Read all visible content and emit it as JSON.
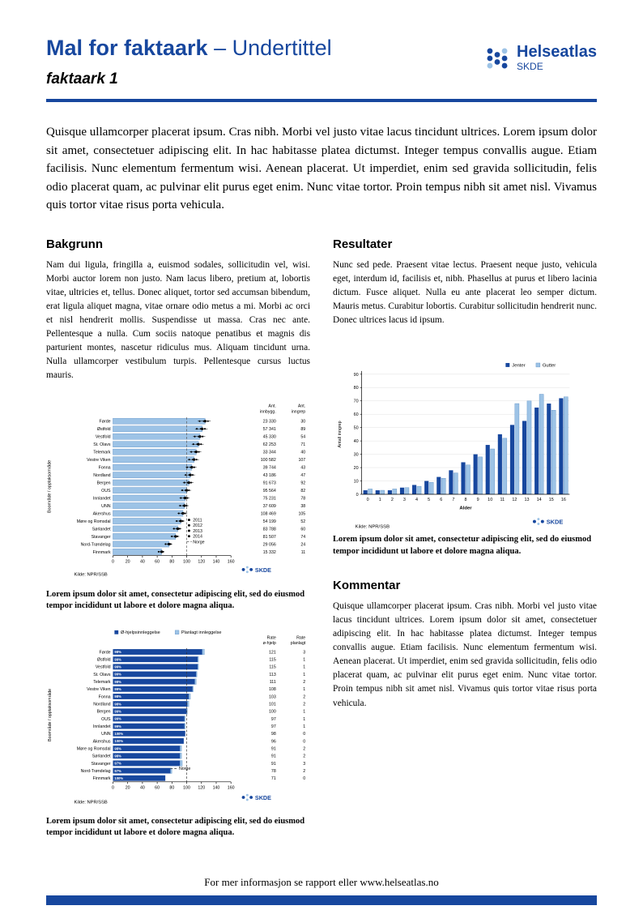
{
  "header": {
    "title": "Mal for faktaark",
    "subtitle": " – Undertittel",
    "sheet_label": "faktaark 1",
    "logo": {
      "name": "Helseatlas",
      "sub": "SKDE"
    }
  },
  "logos": {
    "skde": "SKDE"
  },
  "intro": "Quisque ullamcorper placerat ipsum. Cras nibh. Morbi vel justo vitae lacus tincidunt ultrices. Lorem ipsum dolor sit amet, consectetuer adipiscing elit. In hac habitasse platea dictumst. Integer tempus convallis augue. Etiam facilisis. Nunc elementum fermentum wisi. Aenean placerat. Ut imperdiet, enim sed gravida sollicitudin, felis odio placerat quam, ac pulvinar elit purus eget enim. Nunc vitae tortor. Proin tempus nibh sit amet nisl. Vivamus quis tortor vitae risus porta vehicula.",
  "sections": {
    "bakgrunn": {
      "heading": "Bakgrunn",
      "body": "Nam dui ligula, fringilla a, euismod sodales, sollicitudin vel, wisi. Morbi auctor lorem non justo. Nam lacus libero, pretium at, lobortis vitae, ultricies et, tellus. Donec aliquet, tortor sed accumsan bibendum, erat ligula aliquet magna, vitae ornare odio metus a mi. Morbi ac orci et nisl hendrerit mollis. Suspendisse ut massa. Cras nec ante. Pellentesque a nulla. Cum sociis natoque penatibus et magnis dis parturient montes, nascetur ridiculus mus. Aliquam tincidunt urna. Nulla ullamcorper vestibulum turpis. Pellentesque cursus luctus mauris."
    },
    "resultater": {
      "heading": "Resultater",
      "body": "Nunc sed pede. Praesent vitae lectus. Praesent neque justo, vehicula eget, interdum id, facilisis et, nibh. Phasellus at purus et libero lacinia dictum. Fusce aliquet. Nulla eu ante placerat leo semper dictum. Mauris metus. Curabitur lobortis. Curabitur sollicitudin hendrerit nunc. Donec ultrices lacus id ipsum."
    },
    "kommentar": {
      "heading": "Kommentar",
      "body": "Quisque ullamcorper placerat ipsum. Cras nibh. Morbi vel justo vitae lacus tincidunt ultrices. Lorem ipsum dolor sit amet, consectetuer adipiscing elit. In hac habitasse platea dictumst. Integer tempus convallis augue. Etiam facilisis. Nunc elementum fermentum wisi. Aenean placerat. Ut imperdiet, enim sed gravida sollicitudin, felis odio placerat quam, ac pulvinar elit purus eget enim. Nunc vitae tortor. Proin tempus nibh sit amet nisl. Vivamus quis tortor vitae risus porta vehicula."
    }
  },
  "captions": {
    "chart1": "Lorem ipsum dolor sit amet, consectetur adipiscing elit, sed do eiusmod tempor incididunt ut labore et dolore magna aliqua.",
    "chart2": "Lorem ipsum dolor sit amet, consectetur adipiscing elit, sed do eiusmod tempor incididunt ut labore et dolore magna aliqua.",
    "chart3": "Lorem ipsum dolor sit amet, consectetur adipiscing elit, sed do eiusmod tempor incididunt ut labore et dolore magna aliqua."
  },
  "footer": {
    "text": "For mer informasjon se rapport eller www.helseatlas.no"
  },
  "colors": {
    "brand": "#17479e",
    "bar_light": "#9dc3e6",
    "bar_light_edge": "#5b8ec4",
    "grid": "#e0e0e0"
  },
  "chart_data": [
    {
      "id": "chart1",
      "type": "bar",
      "orientation": "horizontal",
      "ylabel": "Boområde / opptaksområde",
      "categories": [
        "Førde",
        "Østfold",
        "Vestfold",
        "St. Olavs",
        "Telemark",
        "Vestre Viken",
        "Fonna",
        "Nordland",
        "Bergen",
        "OUS",
        "Innlandet",
        "UNN",
        "Akershus",
        "Møre og Romsdal",
        "Sørlandet",
        "Stavanger",
        "Nord-Trøndelag",
        "Finnmark"
      ],
      "values": [
        125,
        121,
        118,
        116,
        113,
        110,
        107,
        105,
        103,
        100,
        98,
        97,
        95,
        92,
        88,
        85,
        76,
        66
      ],
      "col_headers": [
        "Ant. innbygg.",
        "Ant. inngrep"
      ],
      "table": [
        [
          "23 330",
          "30"
        ],
        [
          "57 341",
          "89"
        ],
        [
          "45 330",
          "54"
        ],
        [
          "62 253",
          "71"
        ],
        [
          "33 344",
          "40"
        ],
        [
          "100 582",
          "107"
        ],
        [
          "39 744",
          "43"
        ],
        [
          "43 186",
          "47"
        ],
        [
          "91 673",
          "92"
        ],
        [
          "95 564",
          "82"
        ],
        [
          "75 231",
          "78"
        ],
        [
          "37 609",
          "38"
        ],
        [
          "108 469",
          "105"
        ],
        [
          "54 199",
          "52"
        ],
        [
          "83 788",
          "60"
        ],
        [
          "81 507",
          "74"
        ],
        [
          "29 056",
          "24"
        ],
        [
          "15 332",
          "11"
        ]
      ],
      "legend_years": [
        "2011",
        "2012",
        "2013",
        "2014"
      ],
      "legend_ref": "Norge",
      "xticks": [
        0,
        20,
        40,
        60,
        80,
        100,
        120,
        140,
        160
      ],
      "xlim": [
        0,
        160
      ],
      "reference_line": 100,
      "source": "Kilde: NPR/SSB"
    },
    {
      "id": "chart2",
      "type": "bar",
      "orientation": "horizontal",
      "stacked": true,
      "legend": [
        "Ø-hjelpsinnleggelse",
        "Planlagt innleggelse"
      ],
      "ylabel": "Boområde / opptaksområde",
      "categories": [
        "Førde",
        "Østfold",
        "Vestfold",
        "St. Olavs",
        "Telemark",
        "Vestre Viken",
        "Fonna",
        "Nordland",
        "Bergen",
        "OUS",
        "Innlandet",
        "UNN",
        "Akershus",
        "Møre og Romsdal",
        "Sørlandet",
        "Stavanger",
        "Nord-Trøndelag",
        "Finnmark"
      ],
      "series": [
        {
          "name": "Ø-hjelpsinnleggelse",
          "values": [
            121,
            115,
            115,
            113,
            111,
            108,
            103,
            101,
            100,
            97,
            97,
            98,
            96,
            91,
            91,
            91,
            78,
            71
          ]
        },
        {
          "name": "Planlagt innleggelse",
          "values": [
            3,
            1,
            1,
            1,
            2,
            1,
            2,
            2,
            1,
            1,
            1,
            0,
            0,
            2,
            2,
            3,
            2,
            0
          ]
        }
      ],
      "pct_labels": [
        "98%",
        "99%",
        "99%",
        "99%",
        "98%",
        "99%",
        "98%",
        "98%",
        "99%",
        "99%",
        "99%",
        "100%",
        "100%",
        "98%",
        "98%",
        "97%",
        "97%",
        "100%"
      ],
      "col_headers": [
        "Rate ø-hjelp",
        "Rate planlagt"
      ],
      "xticks": [
        0,
        20,
        40,
        60,
        80,
        100,
        120,
        140,
        160
      ],
      "xlim": [
        0,
        160
      ],
      "reference_line": 100,
      "legend_ref": "Norge",
      "source": "Kilde: NPR/SSB"
    },
    {
      "id": "chart3",
      "type": "bar",
      "orientation": "vertical",
      "xlabel": "Alder",
      "ylabel": "Antall inngrep",
      "categories": [
        "0",
        "1",
        "2",
        "3",
        "4",
        "5",
        "6",
        "7",
        "8",
        "9",
        "10",
        "11",
        "12",
        "13",
        "14",
        "15",
        "16"
      ],
      "series": [
        {
          "name": "Jenter",
          "values": [
            3,
            3,
            3,
            5,
            7,
            10,
            13,
            18,
            24,
            30,
            37,
            45,
            52,
            55,
            65,
            68,
            72
          ]
        },
        {
          "name": "Gutter",
          "values": [
            4,
            3,
            4,
            5,
            6,
            9,
            12,
            16,
            22,
            28,
            34,
            42,
            68,
            70,
            75,
            63,
            73
          ]
        }
      ],
      "ylim": [
        0,
        90
      ],
      "yticks": [
        0,
        10,
        20,
        30,
        40,
        50,
        60,
        70,
        80,
        90
      ],
      "source": "Kilde: NPR/SSB"
    }
  ]
}
